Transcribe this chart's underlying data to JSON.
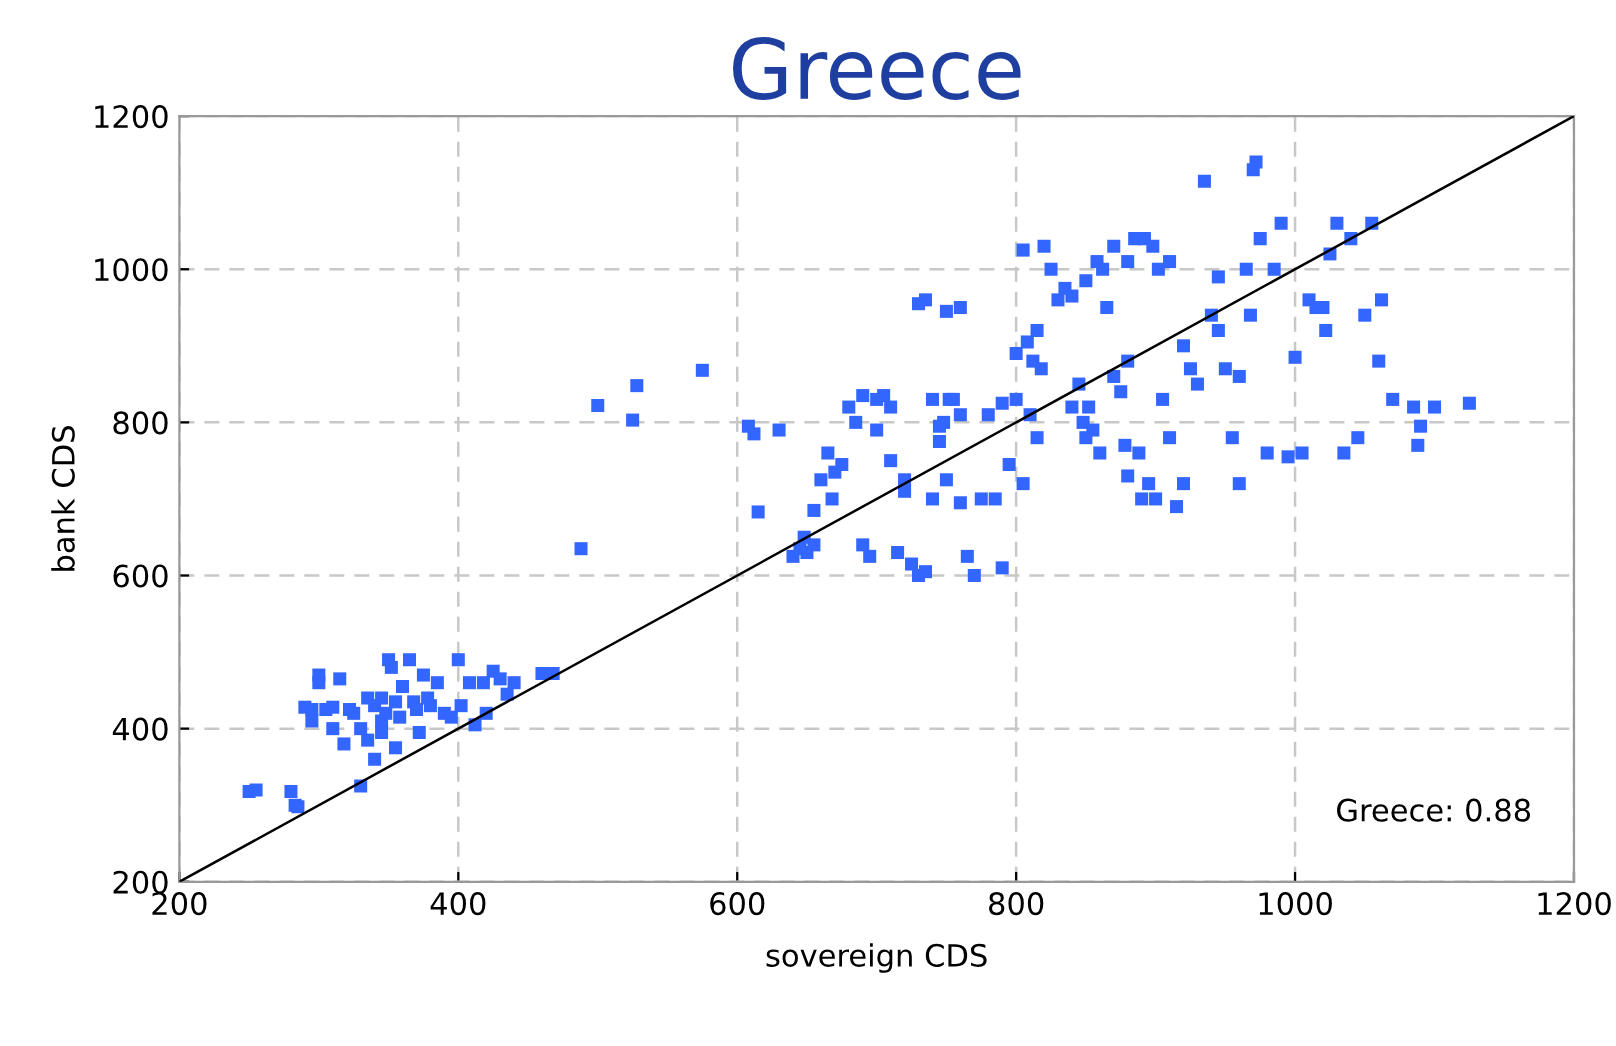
{
  "chart_data": {
    "type": "scatter",
    "title": "Greece",
    "xlabel": "sovereign CDS",
    "ylabel": "bank CDS",
    "xlim": [
      200,
      1200
    ],
    "ylim": [
      200,
      1200
    ],
    "xticks": [
      200,
      400,
      600,
      800,
      1000,
      1200
    ],
    "yticks": [
      200,
      400,
      600,
      800,
      1000,
      1200
    ],
    "grid": true,
    "marker": "square",
    "annotations": [
      "Greece: 0.88"
    ],
    "series": [
      {
        "color": "#3366ff",
        "x": [
          250,
          255,
          280,
          283,
          285,
          290,
          295,
          300,
          300,
          305,
          310,
          315,
          318,
          322,
          325,
          330,
          330,
          335,
          335,
          340,
          340,
          345,
          345,
          348,
          350,
          352,
          355,
          355,
          358,
          360,
          365,
          368,
          370,
          372,
          375,
          378,
          380,
          385,
          390,
          395,
          400,
          402,
          408,
          412,
          418,
          420,
          425,
          430,
          435,
          440,
          460,
          468,
          295,
          310,
          345,
          488,
          500,
          525,
          528,
          575,
          608,
          612,
          615,
          640,
          645,
          648,
          650,
          655,
          655,
          660,
          665,
          670,
          675,
          680,
          685,
          690,
          695,
          700,
          705,
          710,
          715,
          720,
          725,
          730,
          735,
          740,
          745,
          748,
          750,
          752,
          755,
          760,
          765,
          770,
          775,
          780,
          785,
          790,
          730,
          735,
          750,
          760,
          790,
          800,
          795,
          805,
          810,
          815,
          700,
          690,
          710,
          740,
          760,
          668,
          630,
          720,
          745,
          800,
          805,
          808,
          812,
          815,
          818,
          820,
          825,
          830,
          835,
          840,
          845,
          848,
          850,
          852,
          855,
          858,
          860,
          862,
          865,
          870,
          875,
          878,
          880,
          885,
          888,
          890,
          892,
          895,
          898,
          900,
          902,
          905,
          910,
          915,
          920,
          925,
          930,
          935,
          940,
          945,
          950,
          955,
          960,
          965,
          968,
          970,
          972,
          975,
          980,
          985,
          990,
          995,
          1000,
          1005,
          1010,
          1015,
          1020,
          1022,
          1025,
          1030,
          1035,
          1040,
          1045,
          1050,
          1055,
          1060,
          1062,
          1070,
          1085,
          1088,
          1090,
          1100,
          1125,
          840,
          850,
          880,
          910,
          920,
          945,
          960,
          870,
          880
        ],
        "values": [
          318,
          320,
          318,
          300,
          298,
          428,
          425,
          470,
          460,
          425,
          428,
          465,
          380,
          425,
          420,
          325,
          400,
          440,
          385,
          430,
          360,
          410,
          440,
          420,
          490,
          480,
          435,
          375,
          415,
          455,
          490,
          435,
          425,
          395,
          470,
          440,
          430,
          460,
          420,
          415,
          490,
          430,
          460,
          405,
          460,
          420,
          475,
          465,
          445,
          460,
          472,
          472,
          410,
          400,
          395,
          635,
          822,
          803,
          848,
          868,
          795,
          785,
          683,
          625,
          635,
          650,
          630,
          685,
          640,
          725,
          760,
          735,
          745,
          820,
          800,
          640,
          625,
          830,
          835,
          750,
          630,
          710,
          615,
          600,
          605,
          700,
          775,
          800,
          725,
          830,
          830,
          695,
          625,
          600,
          700,
          810,
          700,
          610,
          955,
          960,
          945,
          950,
          825,
          830,
          745,
          720,
          810,
          780,
          790,
          835,
          820,
          830,
          810,
          700,
          790,
          725,
          795,
          890,
          1025,
          905,
          880,
          920,
          870,
          1030,
          1000,
          960,
          975,
          820,
          850,
          800,
          780,
          820,
          790,
          1010,
          760,
          1000,
          950,
          1030,
          840,
          770,
          730,
          1040,
          760,
          700,
          1040,
          720,
          1030,
          700,
          1000,
          830,
          780,
          690,
          720,
          870,
          850,
          1115,
          940,
          990,
          870,
          780,
          860,
          1000,
          940,
          1130,
          1140,
          1040,
          760,
          1000,
          1060,
          755,
          885,
          760,
          960,
          950,
          950,
          920,
          1020,
          1060,
          760,
          1040,
          780,
          940,
          1060,
          880,
          960,
          830,
          820,
          770,
          795,
          820,
          825,
          965,
          985,
          1010,
          1010,
          900,
          920,
          720,
          860,
          880
        ]
      },
      {
        "type": "line",
        "color": "#000000",
        "marker": "none",
        "x": [
          200,
          1200
        ],
        "values": [
          200,
          1200
        ]
      }
    ]
  }
}
